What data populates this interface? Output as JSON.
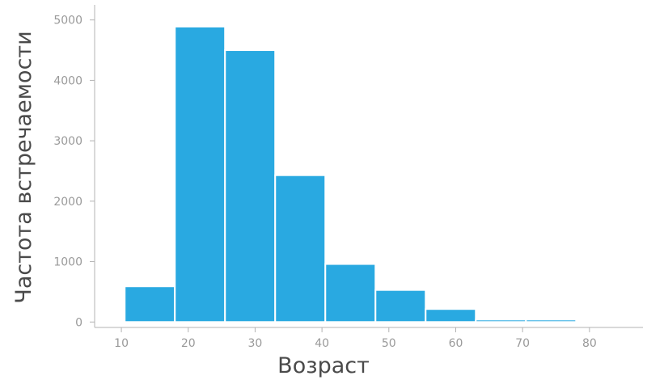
{
  "chart_data": {
    "type": "bar",
    "title": "",
    "xlabel": "Возраст",
    "ylabel": "Частота встречаемости",
    "bin_edges": [
      10.5,
      18.0,
      25.5,
      33.0,
      40.5,
      48.0,
      55.5,
      63.0,
      70.5,
      78.0
    ],
    "values": [
      590,
      4890,
      4500,
      2430,
      960,
      530,
      215,
      40,
      40
    ],
    "x_ticks": [
      10,
      20,
      30,
      40,
      50,
      60,
      70,
      80
    ],
    "x_tick_labels": [
      "10",
      "20",
      "30",
      "40",
      "50",
      "60",
      "70",
      "80"
    ],
    "y_ticks": [
      0,
      1000,
      2000,
      3000,
      4000,
      5000
    ],
    "y_tick_labels": [
      "0",
      "1000",
      "2000",
      "3000",
      "4000",
      "5000"
    ],
    "xlim": [
      6,
      88
    ],
    "ylim": [
      -90,
      5250
    ],
    "grid": false,
    "bar_color": "#29a9e1"
  }
}
